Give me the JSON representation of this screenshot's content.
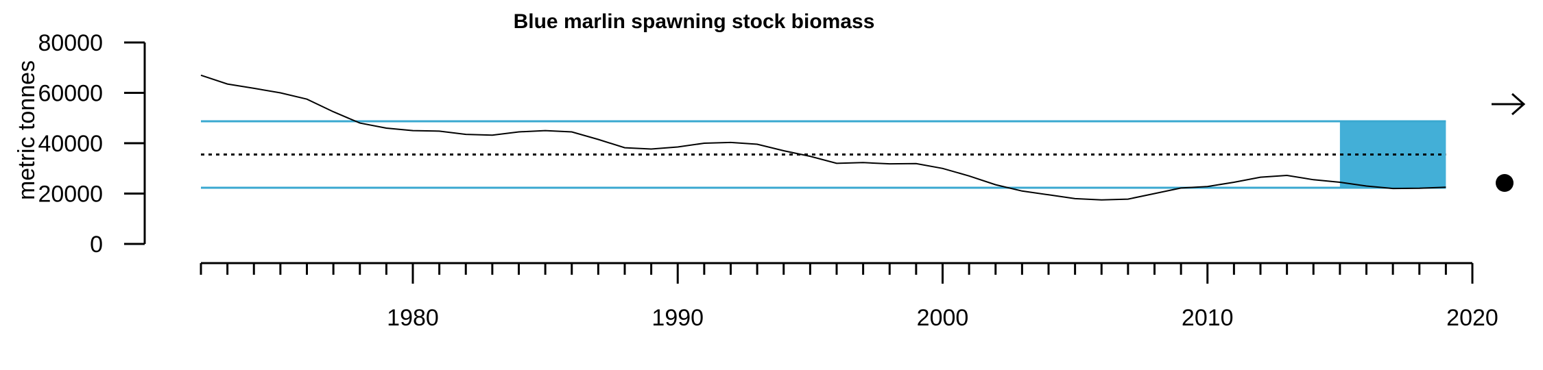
{
  "chart_data": {
    "type": "line",
    "title": "Blue marlin spawning stock biomass",
    "ylabel": "metric tonnes",
    "xlabel": "",
    "xlim": [
      1972,
      2020
    ],
    "ylim": [
      0,
      80000
    ],
    "x_ticks": [
      1980,
      1990,
      2000,
      2010,
      2020
    ],
    "y_ticks": [
      0,
      20000,
      40000,
      60000,
      80000
    ],
    "grid": false,
    "series": [
      {
        "x": [
          1972,
          1973,
          1974,
          1975,
          1976,
          1977,
          1978,
          1979,
          1980,
          1981,
          1982,
          1983,
          1984,
          1985,
          1986,
          1987,
          1988,
          1989,
          1990,
          1991,
          1992,
          1993,
          1994,
          1995,
          1996,
          1997,
          1998,
          1999,
          2000,
          2001,
          2002,
          2003,
          2004,
          2005,
          2006,
          2007,
          2008,
          2009,
          2010,
          2011,
          2012,
          2013,
          2014,
          2015,
          2016,
          2017,
          2018,
          2019
        ],
        "values": [
          67000,
          63500,
          61800,
          60000,
          57500,
          52500,
          48000,
          46000,
          45000,
          44800,
          43500,
          43200,
          44500,
          45000,
          44500,
          41500,
          38200,
          37700,
          38500,
          40000,
          40300,
          39600,
          37000,
          34800,
          32000,
          32300,
          31800,
          31900,
          30000,
          27000,
          23500,
          21000,
          19500,
          18000,
          17500,
          17800,
          20000,
          22200,
          22800,
          24500,
          26500,
          27200,
          25500,
          24500,
          23000,
          22000,
          22100,
          22500
        ],
        "color": "#000000"
      }
    ],
    "reference_lines": {
      "mean": 35500,
      "upper": 48700,
      "lower": 22300,
      "line_color": "#3aa8d0",
      "mean_style": "dotted"
    },
    "highlight_period": {
      "x_start": 2015,
      "x_end": 2019,
      "color": "#43afd7"
    },
    "trend_indicators": {
      "recent_trend": "right-arrow",
      "recent_status": "filled-dot"
    }
  }
}
